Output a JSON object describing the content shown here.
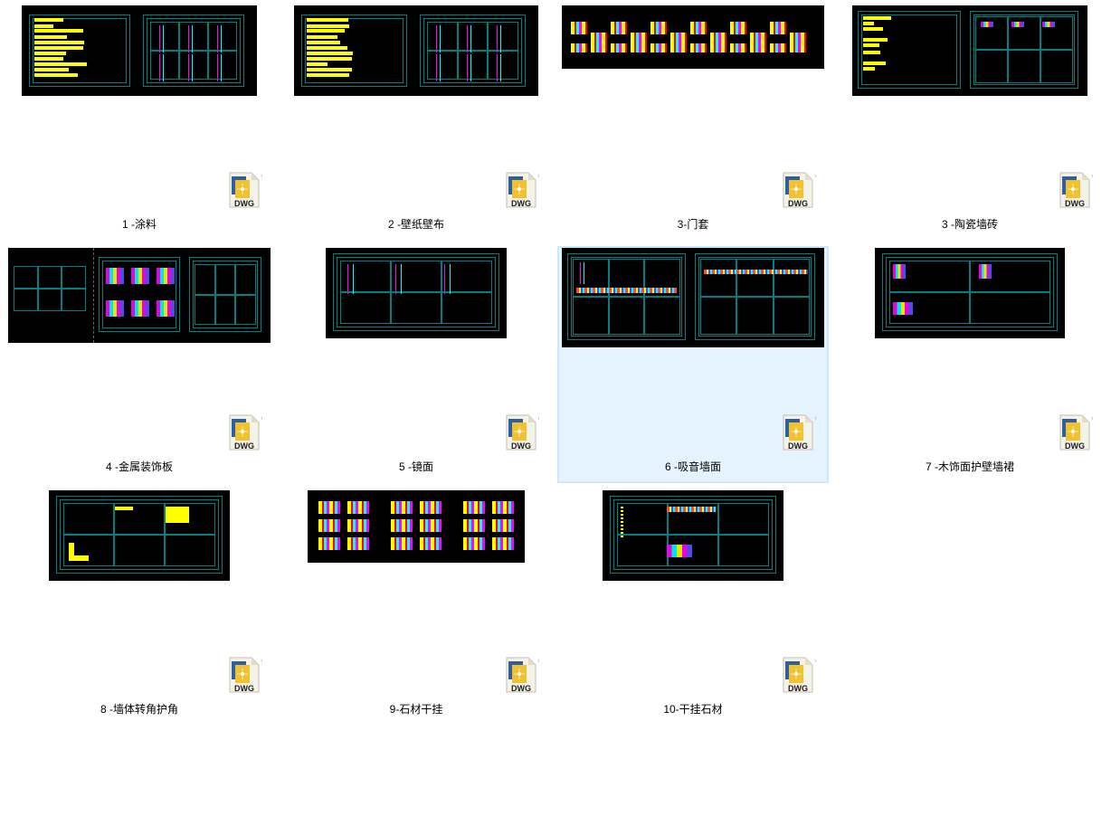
{
  "view": {
    "background": "#ffffff",
    "selection_bg": "#e5f3ff",
    "selection_border": "#cce8ff",
    "thumb_bg": "#000000",
    "thumb_border": "#008080",
    "accent_yellow": "#ffff00",
    "accent_magenta": "#ff00ff",
    "accent_cyan": "#00ffff",
    "accent_red": "#ff0000",
    "accent_blue": "#5555ff",
    "label_color": "#000000",
    "label_fontsize": 12,
    "columns": 4,
    "thumb_crop_w": 296,
    "thumb_crop_h": 229,
    "dwg_badge": {
      "text": "DWG",
      "tm": "TM",
      "paper_fill": "#f5f3e8",
      "paper_stroke": "#c0bfae",
      "blue": "#2f5f9e",
      "yellow": "#f0c230",
      "text_color": "#1a1a1a"
    }
  },
  "files": [
    {
      "label": "1 -涂料",
      "thumb_w": 260,
      "thumb_h": 100,
      "selected": false,
      "style": "A"
    },
    {
      "label": "2 -壁纸壁布",
      "thumb_w": 270,
      "thumb_h": 100,
      "selected": false,
      "style": "A"
    },
    {
      "label": "3-门套",
      "thumb_w": 290,
      "thumb_h": 70,
      "selected": false,
      "style": "B"
    },
    {
      "label": "3 -陶瓷墙砖",
      "thumb_w": 260,
      "thumb_h": 100,
      "selected": false,
      "style": "C"
    },
    {
      "label": "4 -金属装饰板",
      "thumb_w": 290,
      "thumb_h": 105,
      "selected": false,
      "style": "D"
    },
    {
      "label": "5 -镜面",
      "thumb_w": 200,
      "thumb_h": 100,
      "selected": false,
      "style": "E"
    },
    {
      "label": "6 -吸音墙面",
      "thumb_w": 290,
      "thumb_h": 110,
      "selected": true,
      "style": "F"
    },
    {
      "label": "7 -木饰面护壁墙裙",
      "thumb_w": 210,
      "thumb_h": 100,
      "selected": false,
      "style": "G"
    },
    {
      "label": "8 -墙体转角护角",
      "thumb_w": 200,
      "thumb_h": 100,
      "selected": false,
      "style": "H"
    },
    {
      "label": "9-石材干挂",
      "thumb_w": 240,
      "thumb_h": 80,
      "selected": false,
      "style": "I"
    },
    {
      "label": "10-干挂石材",
      "thumb_w": 200,
      "thumb_h": 100,
      "selected": false,
      "style": "J"
    }
  ]
}
